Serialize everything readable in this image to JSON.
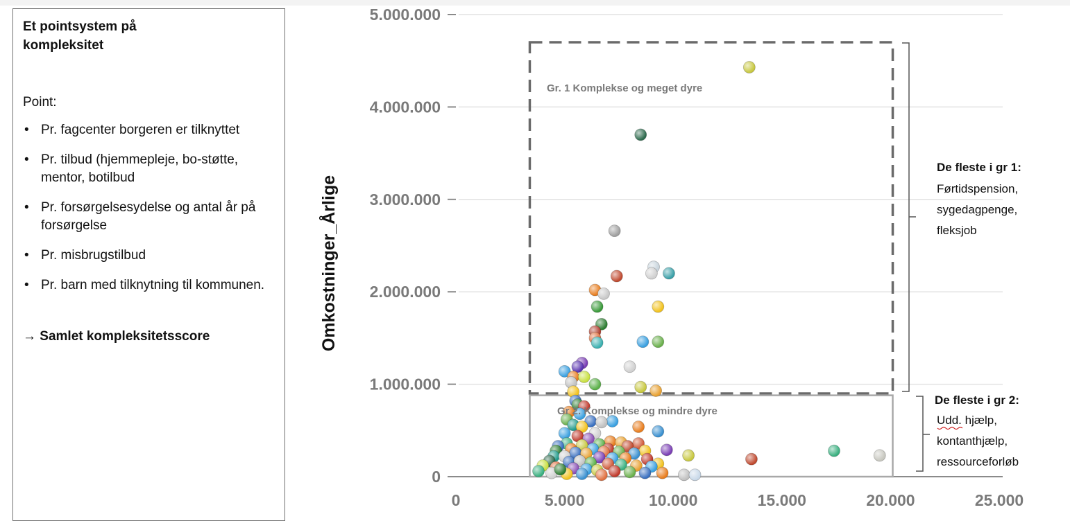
{
  "info": {
    "title": "Et pointsystem på kompleksitet",
    "intro": "Point:",
    "bullets": [
      "Pr. fagcenter borgeren er tilknyttet",
      "Pr. tilbud (hjemmepleje, bo-støtte, mentor, botilbud",
      "Pr. forsørgelsesydelse og antal år på forsørgelse",
      "Pr. misbrugstilbud",
      "Pr. barn med tilknytning til kommunen."
    ],
    "summary": "Samlet kompleksitetsscore",
    "arrow": "→"
  },
  "chart_data": {
    "type": "scatter",
    "title": "",
    "xlabel": "",
    "ylabel": "Omkostninger_Årlige",
    "xlim": [
      0,
      25000
    ],
    "ylim": [
      0,
      5000000
    ],
    "x_ticks": [
      "0",
      "5.000",
      "10.000",
      "15.000",
      "20.000",
      "25.000"
    ],
    "y_ticks": [
      "0",
      "1.000.000",
      "2.000.000",
      "3.000.000",
      "4.000.000",
      "5.000.000"
    ],
    "grid": "horizontal",
    "regions": [
      {
        "label": "Gr. 1 Komplekse og  meget dyre",
        "style": "dashed",
        "x": [
          3400,
          20100
        ],
        "y": [
          900000,
          4700000
        ]
      },
      {
        "label": "Gr 2. Komplekse og  mindre dyre",
        "style": "solid",
        "x": [
          3400,
          20100
        ],
        "y": [
          0,
          880000
        ]
      }
    ],
    "annotations": [
      {
        "heading": "De fleste i gr 1:",
        "lines": [
          "Førtidspension,",
          "sygedagpenge,",
          "fleksjob"
        ]
      },
      {
        "heading": "De fleste i gr 2:",
        "lines": [
          "Udd. hjælp,",
          "kontanthjælp,",
          "ressourceforløb"
        ]
      }
    ],
    "points": [
      {
        "x": 13500,
        "y": 4430000,
        "c": "#c8c840"
      },
      {
        "x": 8500,
        "y": 3700000,
        "c": "#2e6b4e"
      },
      {
        "x": 7300,
        "y": 2660000,
        "c": "#a0a0a0"
      },
      {
        "x": 9100,
        "y": 2270000,
        "c": "#c8d4dc"
      },
      {
        "x": 9000,
        "y": 2200000,
        "c": "#d0d0d0"
      },
      {
        "x": 9800,
        "y": 2200000,
        "c": "#3ba0a8"
      },
      {
        "x": 7400,
        "y": 2170000,
        "c": "#c04a30"
      },
      {
        "x": 6400,
        "y": 2020000,
        "c": "#e87d1e"
      },
      {
        "x": 6800,
        "y": 1980000,
        "c": "#c8c8c8"
      },
      {
        "x": 6500,
        "y": 1840000,
        "c": "#3a9a3a"
      },
      {
        "x": 9300,
        "y": 1840000,
        "c": "#f2c21e"
      },
      {
        "x": 6700,
        "y": 1650000,
        "c": "#2e7d32"
      },
      {
        "x": 6400,
        "y": 1570000,
        "c": "#b14030"
      },
      {
        "x": 6400,
        "y": 1500000,
        "c": "#e07040"
      },
      {
        "x": 6500,
        "y": 1450000,
        "c": "#3bb0b0"
      },
      {
        "x": 8600,
        "y": 1460000,
        "c": "#3aa0e0"
      },
      {
        "x": 9300,
        "y": 1460000,
        "c": "#6ab04c"
      },
      {
        "x": 5800,
        "y": 1230000,
        "c": "#7b3fb5"
      },
      {
        "x": 5600,
        "y": 1190000,
        "c": "#5a35b0"
      },
      {
        "x": 8000,
        "y": 1190000,
        "c": "#d0d0d0"
      },
      {
        "x": 5000,
        "y": 1140000,
        "c": "#3aa0e0"
      },
      {
        "x": 5400,
        "y": 1080000,
        "c": "#e87d1e"
      },
      {
        "x": 5900,
        "y": 1080000,
        "c": "#c8e040"
      },
      {
        "x": 5300,
        "y": 1020000,
        "c": "#c0c0c0"
      },
      {
        "x": 6400,
        "y": 1000000,
        "c": "#5ab048"
      },
      {
        "x": 8500,
        "y": 970000,
        "c": "#c8c840"
      },
      {
        "x": 9200,
        "y": 930000,
        "c": "#e8a030"
      },
      {
        "x": 5400,
        "y": 920000,
        "c": "#f2c21e"
      },
      {
        "x": 5500,
        "y": 820000,
        "c": "#3a70c0"
      },
      {
        "x": 5600,
        "y": 780000,
        "c": "#2e7d32"
      },
      {
        "x": 5900,
        "y": 760000,
        "c": "#c0392b"
      },
      {
        "x": 5200,
        "y": 700000,
        "c": "#e87d1e"
      },
      {
        "x": 5700,
        "y": 680000,
        "c": "#3aa0e0"
      },
      {
        "x": 5100,
        "y": 620000,
        "c": "#6ab04c"
      },
      {
        "x": 6200,
        "y": 600000,
        "c": "#3a70c0"
      },
      {
        "x": 7200,
        "y": 600000,
        "c": "#3aa0e0"
      },
      {
        "x": 6700,
        "y": 590000,
        "c": "#c0c0c0"
      },
      {
        "x": 5400,
        "y": 560000,
        "c": "#1f9a8a"
      },
      {
        "x": 8400,
        "y": 540000,
        "c": "#e87d1e"
      },
      {
        "x": 5800,
        "y": 540000,
        "c": "#f2c21e"
      },
      {
        "x": 9300,
        "y": 490000,
        "c": "#3a90d0"
      },
      {
        "x": 6400,
        "y": 470000,
        "c": "#d0d0d0"
      },
      {
        "x": 5000,
        "y": 470000,
        "c": "#3aa0e0"
      },
      {
        "x": 5600,
        "y": 440000,
        "c": "#c0392b"
      },
      {
        "x": 6100,
        "y": 410000,
        "c": "#8a4fb5"
      },
      {
        "x": 7100,
        "y": 380000,
        "c": "#e87d1e"
      },
      {
        "x": 7600,
        "y": 370000,
        "c": "#e8a030"
      },
      {
        "x": 8400,
        "y": 360000,
        "c": "#d05a3a"
      },
      {
        "x": 5100,
        "y": 360000,
        "c": "#3ab080"
      },
      {
        "x": 6600,
        "y": 350000,
        "c": "#5ab048"
      },
      {
        "x": 5800,
        "y": 340000,
        "c": "#c8c840"
      },
      {
        "x": 4700,
        "y": 330000,
        "c": "#3a70c0"
      },
      {
        "x": 7900,
        "y": 330000,
        "c": "#c04a30"
      },
      {
        "x": 9700,
        "y": 290000,
        "c": "#7b3fb5"
      },
      {
        "x": 5300,
        "y": 300000,
        "c": "#e87d1e"
      },
      {
        "x": 6300,
        "y": 300000,
        "c": "#3aa0e0"
      },
      {
        "x": 7000,
        "y": 300000,
        "c": "#c0392b"
      },
      {
        "x": 8700,
        "y": 280000,
        "c": "#f2c21e"
      },
      {
        "x": 4600,
        "y": 280000,
        "c": "#2e7d32"
      },
      {
        "x": 6800,
        "y": 270000,
        "c": "#e07040"
      },
      {
        "x": 7500,
        "y": 270000,
        "c": "#6ab04c"
      },
      {
        "x": 5500,
        "y": 260000,
        "c": "#3a70c0"
      },
      {
        "x": 6000,
        "y": 250000,
        "c": "#e8a030"
      },
      {
        "x": 8200,
        "y": 250000,
        "c": "#3a90d0"
      },
      {
        "x": 10700,
        "y": 230000,
        "c": "#c8c840"
      },
      {
        "x": 19500,
        "y": 230000,
        "c": "#c8c8c0"
      },
      {
        "x": 17400,
        "y": 280000,
        "c": "#3ab080"
      },
      {
        "x": 13600,
        "y": 190000,
        "c": "#c04a30"
      },
      {
        "x": 4500,
        "y": 220000,
        "c": "#1f9a8a"
      },
      {
        "x": 5000,
        "y": 220000,
        "c": "#d0d0d0"
      },
      {
        "x": 6600,
        "y": 210000,
        "c": "#7b3fb5"
      },
      {
        "x": 7200,
        "y": 200000,
        "c": "#3aa0e0"
      },
      {
        "x": 7800,
        "y": 200000,
        "c": "#e87d1e"
      },
      {
        "x": 8800,
        "y": 190000,
        "c": "#c0392b"
      },
      {
        "x": 9300,
        "y": 140000,
        "c": "#f2c21e"
      },
      {
        "x": 4300,
        "y": 170000,
        "c": "#2e6b4e"
      },
      {
        "x": 5200,
        "y": 160000,
        "c": "#3a70c0"
      },
      {
        "x": 5700,
        "y": 170000,
        "c": "#c0c0c0"
      },
      {
        "x": 6200,
        "y": 150000,
        "c": "#5ab048"
      },
      {
        "x": 7000,
        "y": 140000,
        "c": "#d05a3a"
      },
      {
        "x": 7600,
        "y": 130000,
        "c": "#3ab080"
      },
      {
        "x": 8300,
        "y": 120000,
        "c": "#e8a030"
      },
      {
        "x": 9000,
        "y": 110000,
        "c": "#3aa0e0"
      },
      {
        "x": 4000,
        "y": 120000,
        "c": "#c8e040"
      },
      {
        "x": 4600,
        "y": 100000,
        "c": "#e07040"
      },
      {
        "x": 5400,
        "y": 90000,
        "c": "#8a4fb5"
      },
      {
        "x": 6000,
        "y": 80000,
        "c": "#3aa0e0"
      },
      {
        "x": 6500,
        "y": 70000,
        "c": "#c8c840"
      },
      {
        "x": 7300,
        "y": 60000,
        "c": "#c0392b"
      },
      {
        "x": 8000,
        "y": 50000,
        "c": "#6ab04c"
      },
      {
        "x": 8700,
        "y": 40000,
        "c": "#3a70c0"
      },
      {
        "x": 9500,
        "y": 40000,
        "c": "#e87d1e"
      },
      {
        "x": 10500,
        "y": 20000,
        "c": "#c0c0c0"
      },
      {
        "x": 11000,
        "y": 20000,
        "c": "#c8d8e8"
      },
      {
        "x": 3800,
        "y": 60000,
        "c": "#3ab080"
      },
      {
        "x": 4400,
        "y": 40000,
        "c": "#d0d0d0"
      },
      {
        "x": 5100,
        "y": 30000,
        "c": "#f2c21e"
      },
      {
        "x": 5800,
        "y": 30000,
        "c": "#3a90d0"
      },
      {
        "x": 6700,
        "y": 20000,
        "c": "#e07040"
      },
      {
        "x": 4800,
        "y": 80000,
        "c": "#2e7d32"
      }
    ]
  }
}
